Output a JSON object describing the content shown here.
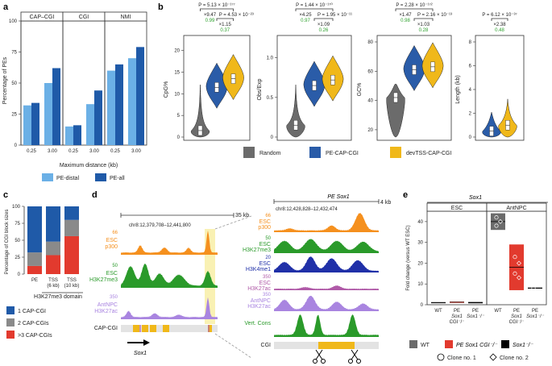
{
  "colors": {
    "light_blue": "#6bb0e6",
    "dark_blue": "#1f5aa8",
    "grey": "#6b6b6b",
    "blue": "#2a5ca8",
    "yellow": "#f0b81a",
    "red": "#e23a2e",
    "orange": "#f5901e",
    "green": "#2a9a2a",
    "purple": "#a985e0",
    "navy": "#2030a8",
    "magenta": "#b05aa8",
    "pval_green": "#2ca02c"
  },
  "panel_labels": {
    "a": "a",
    "b": "b",
    "c": "c",
    "d": "d",
    "e": "e"
  },
  "panel_a": {
    "chart_data": {
      "type": "bar",
      "facets": [
        "CAP–CGI",
        "CGI",
        "NMI"
      ],
      "categories": [
        "0.25",
        "3.00"
      ],
      "series": [
        {
          "name": "PE-distal",
          "values": {
            "CAP–CGI": [
              32,
              50
            ],
            "CGI": [
              15,
              33
            ],
            "NMI": [
              60,
              70
            ]
          }
        },
        {
          "name": "PE-all",
          "values": {
            "CAP–CGI": [
              34,
              62
            ],
            "CGI": [
              16,
              44
            ],
            "NMI": [
              65,
              79
            ]
          }
        }
      ],
      "ylabel": "Percentage of PEs",
      "xlabel": "Maximum distance (kb)",
      "ylim": [
        0,
        100
      ],
      "yticks": [
        "0",
        "25",
        "50",
        "75",
        "100"
      ],
      "legend": [
        "PE-distal",
        "PE-all"
      ]
    }
  },
  "panel_b": {
    "chart_data": {
      "type": "violin",
      "groups": [
        "Random",
        "PE-CAP-CGI",
        "devTSS-CAP-CGI"
      ],
      "facets": [
        {
          "ylabel": "CpG%",
          "yticks": [
            "0",
            "5",
            "10",
            "15",
            "20"
          ],
          "ylim": [
            0,
            22
          ],
          "medians": [
            1.5,
            11.5,
            13.5
          ],
          "stats": {
            "p_top": "P = 5.13 × 10⁻¹⁷⁷",
            "fold_top": "×9.47",
            "g_top": "0.99",
            "p_sub": "P = 4.53 × 10⁻²³",
            "fold_sub": "×1.15",
            "g_sub": "0.37"
          }
        },
        {
          "ylabel": "Obs/Exp",
          "yticks": [
            "0",
            "0.5",
            "1.0"
          ],
          "ylim": [
            0,
            1.2
          ],
          "medians": [
            0.15,
            0.65,
            0.72
          ],
          "stats": {
            "p_top": "P = 1.44 × 10⁻¹⁷⁰",
            "fold_top": "×4.25",
            "g_top": "0.97",
            "p_sub": "P = 1.95 × 10⁻¹¹",
            "fold_sub": "×1.09",
            "g_sub": "0.26"
          }
        },
        {
          "ylabel": "GC%",
          "yticks": [
            "20",
            "40",
            "60",
            "80"
          ],
          "ylim": [
            15,
            80
          ],
          "medians": [
            42,
            61,
            63
          ],
          "stats": {
            "p_top": "P = 2.28 × 10⁻¹⁷²",
            "fold_top": "×1.47",
            "g_top": "0.98",
            "p_sub": "P = 2.16 × 10⁻¹³",
            "fold_sub": "×1.03",
            "g_sub": "0.28"
          }
        },
        {
          "ylabel": "Length (kb)",
          "yticks": [
            "0",
            "2",
            "4",
            "6",
            "8"
          ],
          "ylim": [
            0,
            8
          ],
          "medians": [
            0.5,
            1.0
          ],
          "stats": {
            "p_top": "P = 6.12 × 10⁻³⁷",
            "fold_top": "×2.38",
            "g_top": "0.48"
          }
        }
      ],
      "legend": [
        "Random",
        "PE-CAP-CGI",
        "devTSS-CAP-CGI"
      ]
    }
  },
  "panel_c": {
    "chart_data": {
      "type": "bar",
      "stacked": true,
      "categories": [
        "PE",
        "TSS (6 kb)",
        "TSS (10 kb)"
      ],
      "series": [
        {
          "name": "1 CAP-CGI",
          "values": [
            68,
            52,
            20
          ]
        },
        {
          "name": "2 CAP-CGIs",
          "values": [
            20,
            20,
            24
          ]
        },
        {
          "name": ">3 CAP-CGIs",
          "values": [
            12,
            28,
            56
          ]
        }
      ],
      "ylabel": "Percentage of CGI block sizes",
      "yticks": [
        "0",
        "25",
        "50",
        "75",
        "100"
      ],
      "ylim": [
        0,
        100
      ],
      "cat_labels": [
        "PE",
        "TSS",
        "TSS"
      ],
      "cat_sub": [
        "",
        "(6 kb)",
        "(10 kb)"
      ],
      "domain_label": "H3K27me3 domain",
      "legend": [
        "1 CAP-CGI",
        "2 CAP-CGIs",
        ">3 CAP-CGIs"
      ]
    }
  },
  "panel_d": {
    "left": {
      "scale": "35 kb",
      "coord": "chr8:12,379,708–12,441,800",
      "tracks": [
        {
          "max": "66",
          "name1": "ESC",
          "name2": "p300"
        },
        {
          "max": "50",
          "name1": "ESC",
          "name2": "H3K27me3"
        },
        {
          "max": "350",
          "name1": "AntNPC",
          "name2": "H3K27ac"
        }
      ],
      "cgi_label": "CAP-CGI",
      "gene": "Sox1"
    },
    "right": {
      "title": "PE Sox1",
      "scale": "4 kb",
      "coord": "chr8:12,428,828–12,432,474",
      "tracks": [
        {
          "max": "66",
          "name1": "ESC",
          "name2": "p300"
        },
        {
          "max": "50",
          "name1": "ESC",
          "name2": "H3K27me3"
        },
        {
          "max": "20",
          "name1": "ESC",
          "name2": "H3K4me1"
        },
        {
          "max": "350",
          "name1": "ESC",
          "name2": "H3K27ac"
        },
        {
          "max": "350",
          "name1": "AntNPC",
          "name2": "H3K27ac"
        },
        {
          "max": "",
          "name1": "Vert. Cons",
          "name2": ""
        }
      ],
      "cgi_label": "CGI"
    }
  },
  "panel_e": {
    "title": "Sox1",
    "chart_data": {
      "type": "box",
      "facets": [
        "ESC",
        "AntNPC"
      ],
      "ylabel": "Fold change (versus WT ESC)",
      "yticks": [
        "0",
        "10",
        "20",
        "30",
        "40"
      ],
      "ylim": [
        0,
        45
      ],
      "categories": {
        "ESC": [
          "WT",
          "PE Sox1 CGI⁻/⁻",
          "Sox1⁻/⁻"
        ],
        "AntNPC": [
          "WT",
          "PE Sox1 CGI⁻/⁻",
          "Sox1⁻/⁻"
        ]
      },
      "medians": {
        "ESC": [
          1,
          1.2,
          1
        ],
        "AntNPC": [
          40,
          18,
          8
        ]
      },
      "points": {
        "AntNPC_WT": [
          42,
          40,
          38
        ],
        "AntNPC_PE": [
          23,
          20,
          15,
          13
        ],
        "AntNPC_Sox1": [
          8
        ]
      },
      "cat_line1": [
        "WT",
        "PE",
        "PE"
      ],
      "cat_line2": [
        "",
        "Sox1",
        "Sox1⁻/⁻"
      ],
      "cat_line3": [
        "",
        "CGI⁻/⁻",
        ""
      ],
      "legend": [
        "WT",
        "PE Sox1 CGI⁻/⁻",
        "Sox1⁻/⁻"
      ],
      "clones": [
        "Clone no. 1",
        "Clone no. 2"
      ]
    }
  }
}
